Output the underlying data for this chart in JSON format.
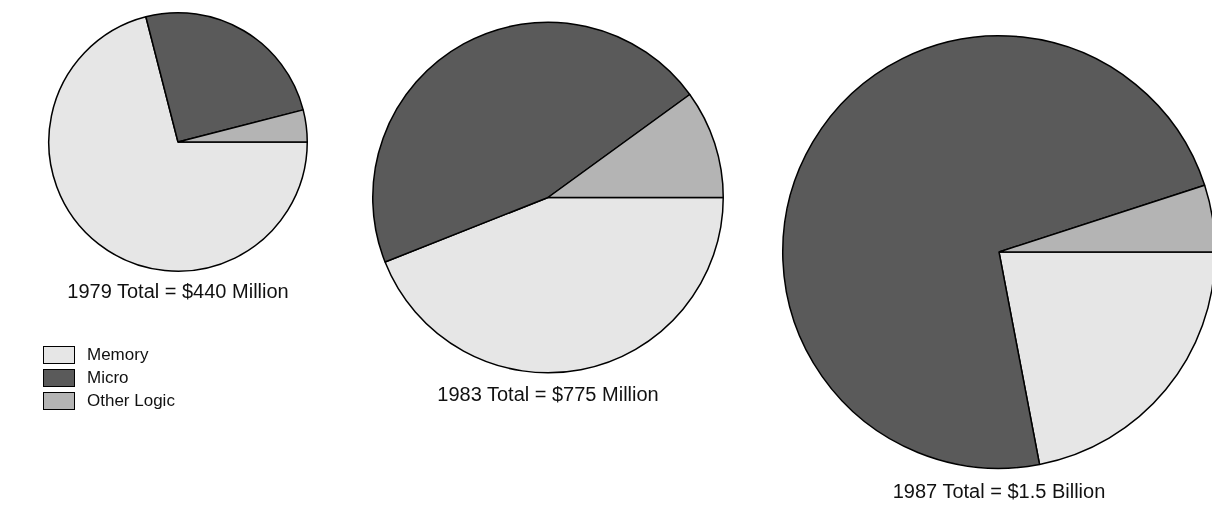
{
  "chart_data": [
    {
      "type": "pie",
      "title": "1979 Total = $440 Million",
      "categories": [
        "Memory",
        "Micro",
        "Other Logic"
      ],
      "values": [
        71,
        25,
        4
      ],
      "colors": [
        "#e6e6e6",
        "#5a5a5a",
        "#b4b4b4"
      ],
      "legend": "bottom left"
    },
    {
      "type": "pie",
      "title": "1983 Total = $775 Million",
      "categories": [
        null,
        null,
        null
      ],
      "values": [
        44,
        46,
        10
      ],
      "colors": [
        "#e6e6e6",
        "#5a5a5a",
        "#b4b4b4"
      ]
    },
    {
      "type": "pie",
      "title": "1987 Total = $1.5 Billion",
      "categories": [
        null,
        null,
        null
      ],
      "values": [
        22,
        73,
        5
      ],
      "colors": [
        "#e6e6e6",
        "#5a5a5a",
        "#b4b4b4"
      ]
    }
  ]
}
